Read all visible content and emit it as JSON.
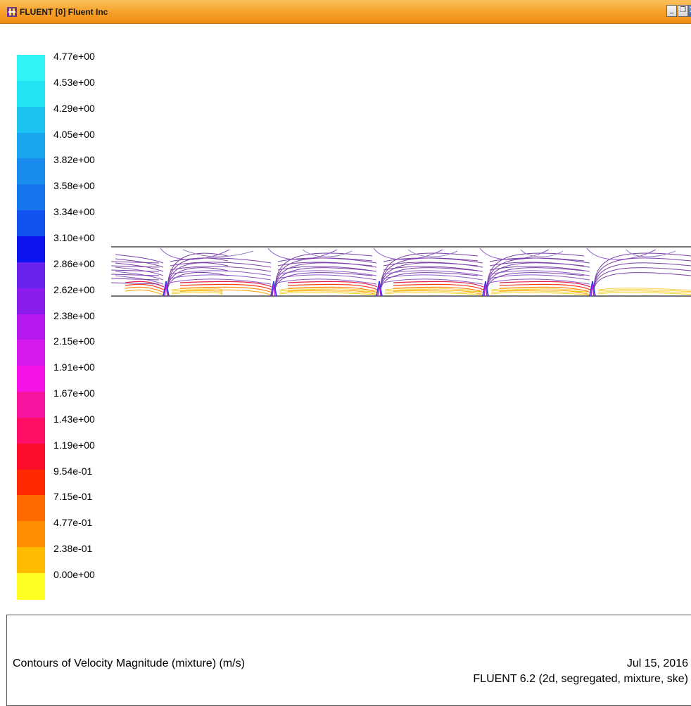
{
  "window": {
    "title": "FLUENT [0] Fluent Inc",
    "min_label": "_",
    "max_label": "❐",
    "close_label": "X"
  },
  "legend": {
    "ticks": [
      "4.77e+00",
      "4.53e+00",
      "4.29e+00",
      "4.05e+00",
      "3.82e+00",
      "3.58e+00",
      "3.34e+00",
      "3.10e+00",
      "2.86e+00",
      "2.62e+00",
      "2.38e+00",
      "2.15e+00",
      "1.91e+00",
      "1.67e+00",
      "1.43e+00",
      "1.19e+00",
      "9.54e-01",
      "7.15e-01",
      "4.77e-01",
      "2.38e-01",
      "0.00e+00"
    ],
    "colors": [
      "#33f4f4",
      "#22e2f4",
      "#1cc2f2",
      "#1aa6ef",
      "#1a8cee",
      "#1676ee",
      "#1252f0",
      "#0b13ee",
      "#6a22ee",
      "#8c1cee",
      "#b61aee",
      "#d61aee",
      "#f412e4",
      "#f7149e",
      "#ff0f66",
      "#fd0e2b",
      "#ff2a00",
      "#ff6a00",
      "#ff8e00",
      "#ffbb00",
      "#ffff22"
    ]
  },
  "footer": {
    "title": "Contours of Velocity Magnitude (mixture)  (m/s)",
    "date": "Jul 15, 2016",
    "version": "FLUENT 6.2 (2d, segregated, mixture, ske)"
  }
}
